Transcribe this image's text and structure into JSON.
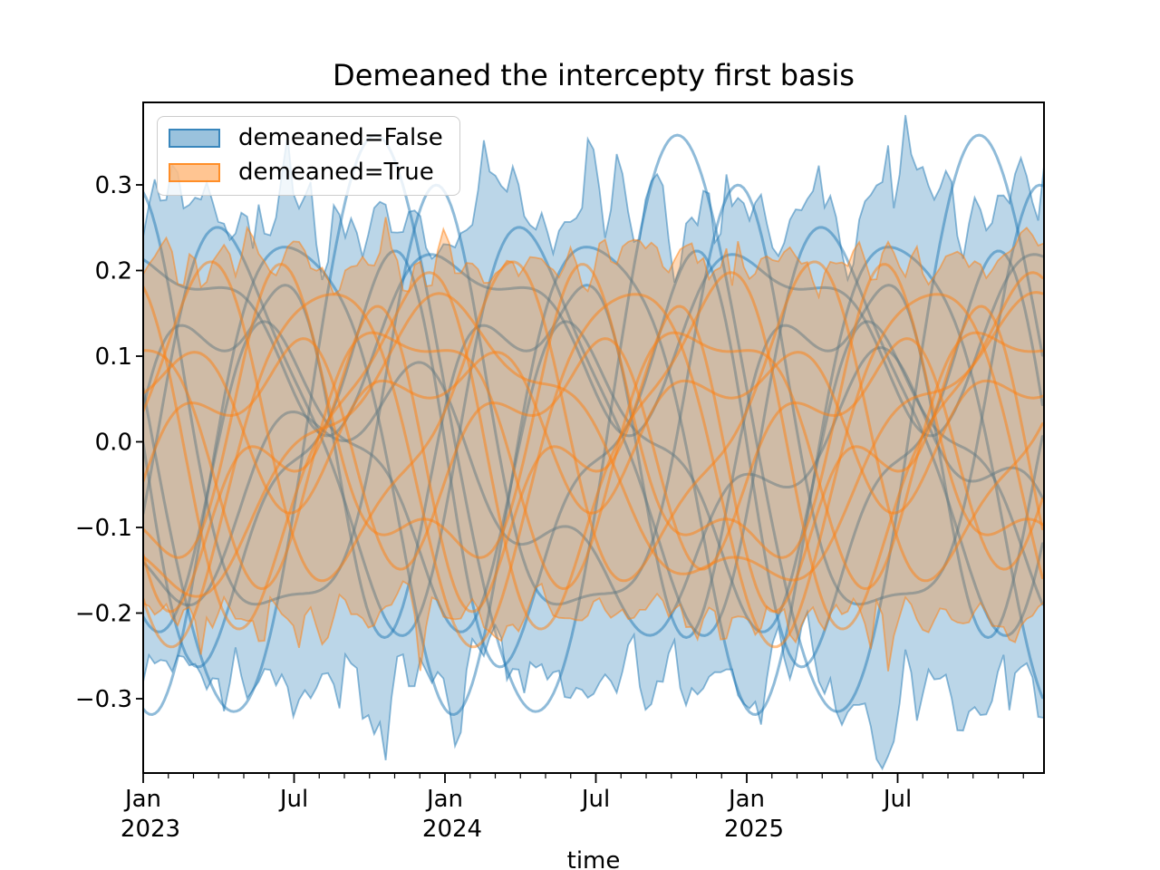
{
  "chart_data": {
    "type": "line",
    "title": "Demeaned the intercepty first basis",
    "xlabel": "time",
    "ylabel": "",
    "grid": false,
    "legend_position": "upper left",
    "x_axis": {
      "unit": "months since 2023-01",
      "range": [
        0,
        35.82
      ],
      "major_ticks": [
        {
          "t": 0,
          "label": "Jan",
          "year": "2023"
        },
        {
          "t": 6,
          "label": "Jul",
          "year": ""
        },
        {
          "t": 12,
          "label": "Jan",
          "year": "2024"
        },
        {
          "t": 18,
          "label": "Jul",
          "year": ""
        },
        {
          "t": 24,
          "label": "Jan",
          "year": "2025"
        },
        {
          "t": 30,
          "label": "Jul",
          "year": ""
        }
      ],
      "minor_tick_every": 1
    },
    "y_axis": {
      "range": [
        -0.387,
        0.396
      ],
      "ticks": [
        0.3,
        0.2,
        0.1,
        0.0,
        -0.1,
        -0.2,
        -0.3
      ],
      "tick_labels": [
        "0.3",
        "0.2",
        "0.1",
        "0.0",
        "−0.1",
        "−0.2",
        "−0.3"
      ]
    },
    "legend": [
      {
        "label": "demeaned=False",
        "color": "#1f77b4"
      },
      {
        "label": "demeaned=True",
        "color": "#ff7f0e"
      }
    ],
    "style": {
      "background": "#ffffff",
      "frame_color": "#000000",
      "band_fill_alpha": 0.3,
      "band_edge_alpha": 0.5,
      "band_edge_width": 1.8,
      "line_alpha": 0.5,
      "line_width": 3,
      "swatch_fill_alpha": 0.45,
      "swatch_edge_alpha": 0.8
    },
    "groups": [
      {
        "name": "demeaned=False",
        "color": "#1f77b4",
        "band": {
          "upper_mean": 0.272,
          "lower_mean": -0.282,
          "noise_std": 0.032,
          "spike_prob": 0.07,
          "spike_amp": 0.05,
          "points": 157,
          "seed": 20230101
        },
        "curves": [
          {
            "a1": 0.335,
            "p1": 12,
            "ph1": 18.4,
            "a2": 0.02,
            "p2": 6,
            "ph2": 1.0,
            "off": 0.01
          },
          {
            "a1": 0.27,
            "p1": 12,
            "ph1": 3.2,
            "a2": 0.05,
            "p2": 6,
            "ph2": 2.0,
            "off": 0.0
          },
          {
            "a1": 0.24,
            "p1": 12,
            "ph1": 8.6,
            "a2": 0.07,
            "p2": 6,
            "ph2": 4.2,
            "off": -0.01
          },
          {
            "a1": 0.22,
            "p1": 12,
            "ph1": 12.7,
            "a2": 0.05,
            "p2": 6,
            "ph2": 0.5,
            "off": 0.02
          },
          {
            "a1": 0.2,
            "p1": 12,
            "ph1": 6.1,
            "a2": 0.08,
            "p2": 6,
            "ph2": 3.1,
            "off": -0.02
          },
          {
            "a1": 0.17,
            "p1": 12,
            "ph1": 0.8,
            "a2": 0.09,
            "p2": 6,
            "ph2": 5.0,
            "off": 0.03
          },
          {
            "a1": 0.15,
            "p1": 12,
            "ph1": 14.9,
            "a2": 0.06,
            "p2": 6,
            "ph2": 2.6,
            "off": -0.03
          },
          {
            "a1": 0.09,
            "p1": 12,
            "ph1": 10.0,
            "a2": 0.04,
            "p2": 6,
            "ph2": 3.0,
            "off": 0.135
          },
          {
            "a1": 0.12,
            "p1": 20,
            "ph1": 4.4,
            "a2": 0.05,
            "p2": 6,
            "ph2": 3.8,
            "off": -0.06
          }
        ]
      },
      {
        "name": "demeaned=True",
        "color": "#ff7f0e",
        "band": {
          "upper_mean": 0.212,
          "lower_mean": -0.203,
          "noise_std": 0.016,
          "spike_prob": 0.06,
          "spike_amp": 0.035,
          "points": 157,
          "seed": 19700915
        },
        "curves": [
          {
            "a1": 0.205,
            "p1": 12,
            "ph1": 16.2,
            "a2": 0.035,
            "p2": 6,
            "ph2": 2.5,
            "off": 0.0
          },
          {
            "a1": 0.185,
            "p1": 12,
            "ph1": 7.4,
            "a2": 0.055,
            "p2": 6,
            "ph2": 4.8,
            "off": 0.005
          },
          {
            "a1": 0.165,
            "p1": 12,
            "ph1": 11.1,
            "a2": 0.05,
            "p2": 6,
            "ph2": 1.7,
            "off": 0.01
          },
          {
            "a1": 0.15,
            "p1": 12,
            "ph1": 2.6,
            "a2": 0.07,
            "p2": 6,
            "ph2": 3.9,
            "off": -0.012
          },
          {
            "a1": 0.14,
            "p1": 12,
            "ph1": 19.6,
            "a2": 0.05,
            "p2": 6,
            "ph2": 0.3,
            "off": 0.018
          },
          {
            "a1": 0.12,
            "p1": 12,
            "ph1": 5.2,
            "a2": 0.085,
            "p2": 6,
            "ph2": 2.2,
            "off": -0.02
          },
          {
            "a1": 0.1,
            "p1": 12,
            "ph1": 13.8,
            "a2": 0.06,
            "p2": 6,
            "ph2": 5.5,
            "off": 0.005
          },
          {
            "a1": 0.155,
            "p1": 23,
            "ph1": 6.5,
            "a2": 0.03,
            "p2": 6,
            "ph2": 4.1,
            "off": -0.01
          },
          {
            "a1": 0.07,
            "p1": 12,
            "ph1": 9.2,
            "a2": 0.045,
            "p2": 6,
            "ph2": 1.2,
            "off": 0.03
          }
        ]
      }
    ]
  }
}
